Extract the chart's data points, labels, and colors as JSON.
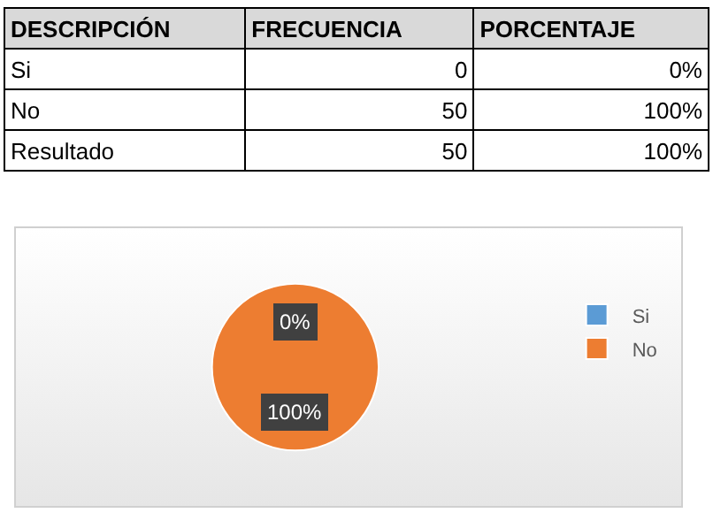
{
  "chart_data": [
    {
      "type": "other",
      "categories": [
        "DESCRIPCIÓN",
        "FRECUENCIA",
        "PORCENTAJE"
      ],
      "cell_labels": [
        [
          "Si",
          "0",
          "0%"
        ],
        [
          "No",
          "50",
          "100%"
        ],
        [
          "Resultado",
          "50",
          "100%"
        ]
      ]
    },
    {
      "type": "pie",
      "categories": [
        "Si",
        "No"
      ],
      "values": [
        0,
        100
      ],
      "colors": [
        "#5b9bd5",
        "#ed7d31"
      ],
      "value_labels": [
        "0%",
        "100%"
      ],
      "legend": "right"
    }
  ]
}
